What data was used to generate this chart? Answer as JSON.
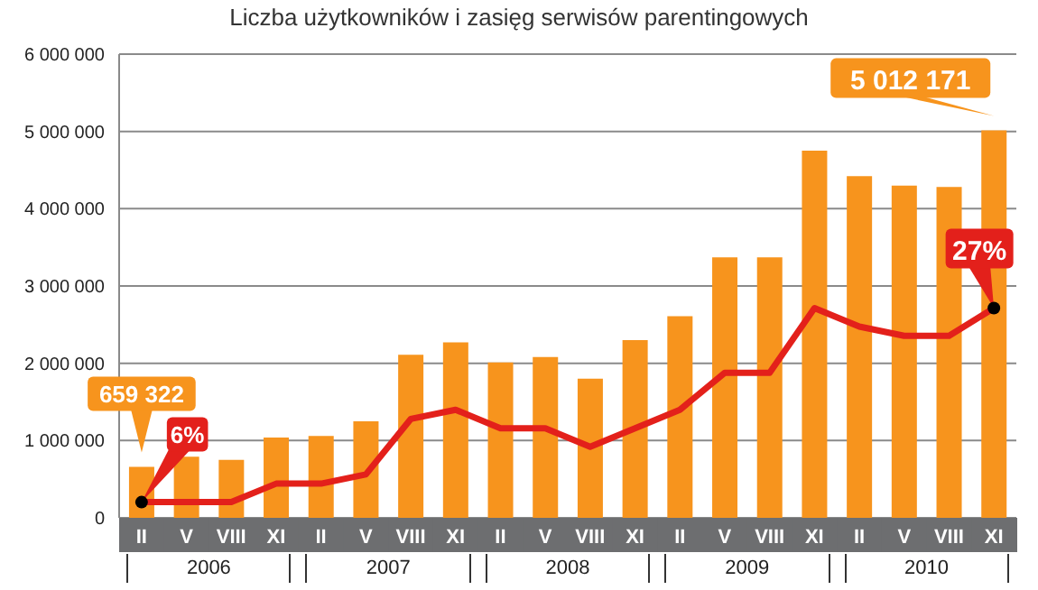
{
  "chart_data": {
    "type": "bar",
    "title": "Liczba użytkowników i zasięg serwisów parentingowych",
    "categories": [
      "II",
      "V",
      "VIII",
      "XI",
      "II",
      "V",
      "VIII",
      "XI",
      "II",
      "V",
      "VIII",
      "XI",
      "II",
      "V",
      "VIII",
      "XI",
      "II",
      "V",
      "VIII",
      "XI"
    ],
    "series": [
      {
        "color": "#f7941d",
        "values": [
          659322,
          790000,
          750000,
          1040000,
          1060000,
          1250000,
          2110000,
          2270000,
          2010000,
          2080000,
          1800000,
          2300000,
          2610000,
          3370000,
          3370000,
          4750000,
          4420000,
          4300000,
          4280000,
          5012171
        ],
        "value_labels": [
          "659 322",
          null,
          null,
          null,
          null,
          null,
          null,
          null,
          null,
          null,
          null,
          null,
          null,
          null,
          null,
          null,
          null,
          null,
          null,
          "5 012 171"
        ]
      },
      {
        "type": "line",
        "axis": "y2",
        "color": "#e3201b",
        "values": [
          6,
          6,
          6,
          8,
          8,
          9,
          15,
          16,
          14,
          14,
          12,
          14,
          16,
          20,
          20,
          27,
          25,
          24,
          24,
          27
        ],
        "value_labels": [
          "6%",
          null,
          null,
          null,
          null,
          null,
          null,
          null,
          null,
          null,
          null,
          null,
          null,
          null,
          null,
          null,
          null,
          null,
          null,
          "27%"
        ]
      }
    ],
    "annotations": [
      "2006",
      "2007",
      "2008",
      "2009",
      "2010"
    ],
    "ylim": [
      0,
      6000000
    ],
    "yticks": [
      0,
      1000000,
      2000000,
      3000000,
      4000000,
      5000000,
      6000000
    ],
    "y2lim": [
      4.3,
      54.5
    ],
    "grid": "y",
    "legend": false
  }
}
